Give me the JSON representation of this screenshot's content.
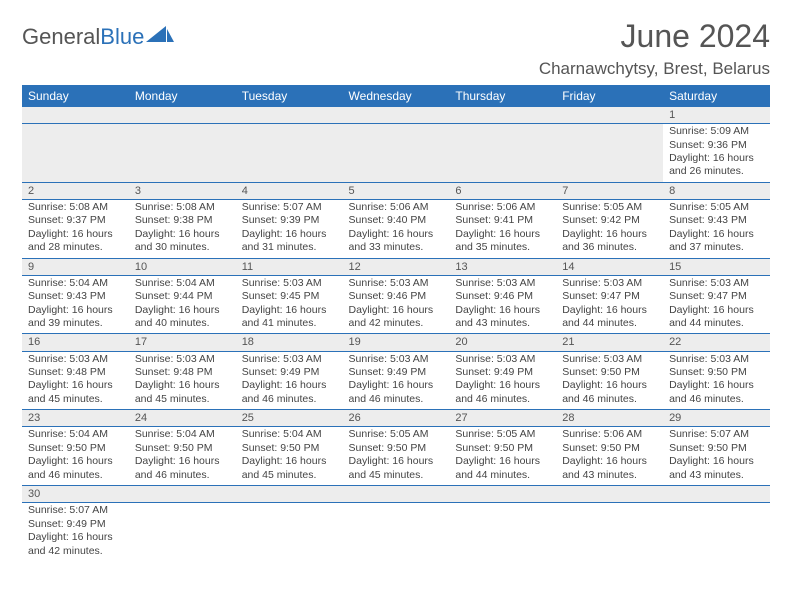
{
  "logo": {
    "text1": "General",
    "text2": "Blue"
  },
  "title": "June 2024",
  "location": "Charnawchytsy, Brest, Belarus",
  "colors": {
    "header_bg": "#2b71b8",
    "header_text": "#ffffff",
    "daynum_bg": "#ededed",
    "divider": "#2b71b8",
    "body_text": "#444444",
    "title_color": "#555555"
  },
  "fonts": {
    "title_size": 32,
    "location_size": 17,
    "th_size": 12,
    "cell_size": 10.5
  },
  "weekdays": [
    "Sunday",
    "Monday",
    "Tuesday",
    "Wednesday",
    "Thursday",
    "Friday",
    "Saturday"
  ],
  "weeks": [
    [
      null,
      null,
      null,
      null,
      null,
      null,
      {
        "n": "1",
        "sr": "Sunrise: 5:09 AM",
        "ss": "Sunset: 9:36 PM",
        "d1": "Daylight: 16 hours",
        "d2": "and 26 minutes."
      }
    ],
    [
      {
        "n": "2",
        "sr": "Sunrise: 5:08 AM",
        "ss": "Sunset: 9:37 PM",
        "d1": "Daylight: 16 hours",
        "d2": "and 28 minutes."
      },
      {
        "n": "3",
        "sr": "Sunrise: 5:08 AM",
        "ss": "Sunset: 9:38 PM",
        "d1": "Daylight: 16 hours",
        "d2": "and 30 minutes."
      },
      {
        "n": "4",
        "sr": "Sunrise: 5:07 AM",
        "ss": "Sunset: 9:39 PM",
        "d1": "Daylight: 16 hours",
        "d2": "and 31 minutes."
      },
      {
        "n": "5",
        "sr": "Sunrise: 5:06 AM",
        "ss": "Sunset: 9:40 PM",
        "d1": "Daylight: 16 hours",
        "d2": "and 33 minutes."
      },
      {
        "n": "6",
        "sr": "Sunrise: 5:06 AM",
        "ss": "Sunset: 9:41 PM",
        "d1": "Daylight: 16 hours",
        "d2": "and 35 minutes."
      },
      {
        "n": "7",
        "sr": "Sunrise: 5:05 AM",
        "ss": "Sunset: 9:42 PM",
        "d1": "Daylight: 16 hours",
        "d2": "and 36 minutes."
      },
      {
        "n": "8",
        "sr": "Sunrise: 5:05 AM",
        "ss": "Sunset: 9:43 PM",
        "d1": "Daylight: 16 hours",
        "d2": "and 37 minutes."
      }
    ],
    [
      {
        "n": "9",
        "sr": "Sunrise: 5:04 AM",
        "ss": "Sunset: 9:43 PM",
        "d1": "Daylight: 16 hours",
        "d2": "and 39 minutes."
      },
      {
        "n": "10",
        "sr": "Sunrise: 5:04 AM",
        "ss": "Sunset: 9:44 PM",
        "d1": "Daylight: 16 hours",
        "d2": "and 40 minutes."
      },
      {
        "n": "11",
        "sr": "Sunrise: 5:03 AM",
        "ss": "Sunset: 9:45 PM",
        "d1": "Daylight: 16 hours",
        "d2": "and 41 minutes."
      },
      {
        "n": "12",
        "sr": "Sunrise: 5:03 AM",
        "ss": "Sunset: 9:46 PM",
        "d1": "Daylight: 16 hours",
        "d2": "and 42 minutes."
      },
      {
        "n": "13",
        "sr": "Sunrise: 5:03 AM",
        "ss": "Sunset: 9:46 PM",
        "d1": "Daylight: 16 hours",
        "d2": "and 43 minutes."
      },
      {
        "n": "14",
        "sr": "Sunrise: 5:03 AM",
        "ss": "Sunset: 9:47 PM",
        "d1": "Daylight: 16 hours",
        "d2": "and 44 minutes."
      },
      {
        "n": "15",
        "sr": "Sunrise: 5:03 AM",
        "ss": "Sunset: 9:47 PM",
        "d1": "Daylight: 16 hours",
        "d2": "and 44 minutes."
      }
    ],
    [
      {
        "n": "16",
        "sr": "Sunrise: 5:03 AM",
        "ss": "Sunset: 9:48 PM",
        "d1": "Daylight: 16 hours",
        "d2": "and 45 minutes."
      },
      {
        "n": "17",
        "sr": "Sunrise: 5:03 AM",
        "ss": "Sunset: 9:48 PM",
        "d1": "Daylight: 16 hours",
        "d2": "and 45 minutes."
      },
      {
        "n": "18",
        "sr": "Sunrise: 5:03 AM",
        "ss": "Sunset: 9:49 PM",
        "d1": "Daylight: 16 hours",
        "d2": "and 46 minutes."
      },
      {
        "n": "19",
        "sr": "Sunrise: 5:03 AM",
        "ss": "Sunset: 9:49 PM",
        "d1": "Daylight: 16 hours",
        "d2": "and 46 minutes."
      },
      {
        "n": "20",
        "sr": "Sunrise: 5:03 AM",
        "ss": "Sunset: 9:49 PM",
        "d1": "Daylight: 16 hours",
        "d2": "and 46 minutes."
      },
      {
        "n": "21",
        "sr": "Sunrise: 5:03 AM",
        "ss": "Sunset: 9:50 PM",
        "d1": "Daylight: 16 hours",
        "d2": "and 46 minutes."
      },
      {
        "n": "22",
        "sr": "Sunrise: 5:03 AM",
        "ss": "Sunset: 9:50 PM",
        "d1": "Daylight: 16 hours",
        "d2": "and 46 minutes."
      }
    ],
    [
      {
        "n": "23",
        "sr": "Sunrise: 5:04 AM",
        "ss": "Sunset: 9:50 PM",
        "d1": "Daylight: 16 hours",
        "d2": "and 46 minutes."
      },
      {
        "n": "24",
        "sr": "Sunrise: 5:04 AM",
        "ss": "Sunset: 9:50 PM",
        "d1": "Daylight: 16 hours",
        "d2": "and 46 minutes."
      },
      {
        "n": "25",
        "sr": "Sunrise: 5:04 AM",
        "ss": "Sunset: 9:50 PM",
        "d1": "Daylight: 16 hours",
        "d2": "and 45 minutes."
      },
      {
        "n": "26",
        "sr": "Sunrise: 5:05 AM",
        "ss": "Sunset: 9:50 PM",
        "d1": "Daylight: 16 hours",
        "d2": "and 45 minutes."
      },
      {
        "n": "27",
        "sr": "Sunrise: 5:05 AM",
        "ss": "Sunset: 9:50 PM",
        "d1": "Daylight: 16 hours",
        "d2": "and 44 minutes."
      },
      {
        "n": "28",
        "sr": "Sunrise: 5:06 AM",
        "ss": "Sunset: 9:50 PM",
        "d1": "Daylight: 16 hours",
        "d2": "and 43 minutes."
      },
      {
        "n": "29",
        "sr": "Sunrise: 5:07 AM",
        "ss": "Sunset: 9:50 PM",
        "d1": "Daylight: 16 hours",
        "d2": "and 43 minutes."
      }
    ],
    [
      {
        "n": "30",
        "sr": "Sunrise: 5:07 AM",
        "ss": "Sunset: 9:49 PM",
        "d1": "Daylight: 16 hours",
        "d2": "and 42 minutes."
      },
      null,
      null,
      null,
      null,
      null,
      null
    ]
  ]
}
